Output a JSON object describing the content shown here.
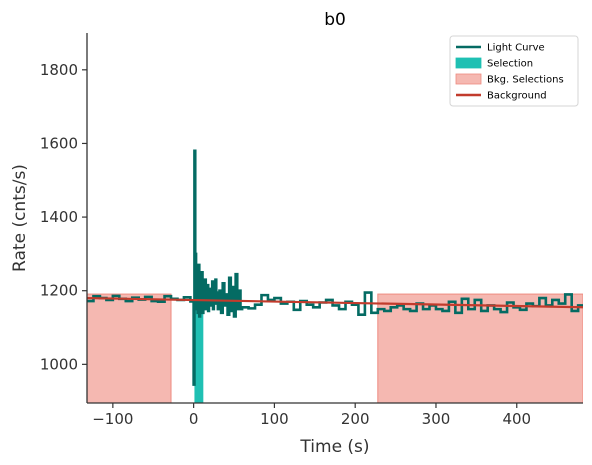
{
  "chart_data": {
    "type": "line",
    "title": "b0",
    "xlabel": "Time (s)",
    "ylabel": "Rate (cnts/s)",
    "xlim": [
      -132,
      482
    ],
    "ylim": [
      895,
      1900
    ],
    "xticks": [
      -100,
      0,
      100,
      200,
      300,
      400
    ],
    "yticks": [
      1000,
      1200,
      1400,
      1600,
      1800
    ],
    "xtick_labels": [
      "−100",
      "0",
      "100",
      "200",
      "300",
      "400"
    ],
    "ytick_labels": [
      "1000",
      "1200",
      "1400",
      "1600",
      "1800"
    ],
    "grid": false,
    "legend_position": "top-right",
    "legend": [
      {
        "label": "Light Curve",
        "kind": "line",
        "color": "#046b63"
      },
      {
        "label": "Selection",
        "kind": "patch",
        "color": "#1fc0b3"
      },
      {
        "label": "Bkg. Selections",
        "kind": "patch",
        "color": "#f5b8b1"
      },
      {
        "label": "Background",
        "kind": "line",
        "color": "#c23b2c"
      }
    ],
    "selection": {
      "x": [
        1,
        12
      ],
      "color": "#1fc0b3"
    },
    "bkg_selections": [
      {
        "x": [
          -132,
          -28
        ],
        "color": "#f5b8b1"
      },
      {
        "x": [
          228,
          482
        ],
        "color": "#f5b8b1"
      }
    ],
    "background": {
      "x": [
        -132,
        482
      ],
      "y": [
        1180,
        1155
      ],
      "color": "#c23b2c"
    },
    "light_curve": {
      "color": "#046b63",
      "step_edges": [
        -132,
        -124,
        -116,
        -108,
        -100,
        -92,
        -84,
        -76,
        -68,
        -60,
        -52,
        -44,
        -36,
        -28,
        -20,
        -12,
        -4,
        0,
        1,
        2,
        3,
        4,
        5,
        6,
        7,
        8,
        9,
        10,
        11,
        12,
        13,
        14,
        15,
        16,
        17,
        18,
        19,
        20,
        21,
        22,
        23,
        24,
        25,
        26,
        27,
        28,
        29,
        30,
        32,
        34,
        36,
        38,
        40,
        42,
        44,
        46,
        48,
        50,
        52,
        54,
        56,
        58,
        60,
        68,
        76,
        84,
        92,
        100,
        108,
        116,
        124,
        132,
        140,
        148,
        156,
        164,
        172,
        180,
        188,
        196,
        204,
        212,
        220,
        228,
        236,
        244,
        252,
        260,
        268,
        276,
        284,
        292,
        300,
        308,
        316,
        324,
        332,
        340,
        348,
        356,
        364,
        372,
        380,
        388,
        396,
        404,
        412,
        420,
        428,
        436,
        444,
        452,
        460,
        468,
        476,
        482
      ],
      "values": [
        1172,
        1185,
        1180,
        1175,
        1186,
        1178,
        1172,
        1181,
        1176,
        1183,
        1172,
        1170,
        1185,
        1178,
        1175,
        1182,
        1171,
        945,
        1580,
        1300,
        1150,
        1230,
        1140,
        1270,
        1130,
        1210,
        1160,
        1250,
        1140,
        1200,
        1155,
        1230,
        1150,
        1180,
        1215,
        1145,
        1205,
        1165,
        1185,
        1160,
        1225,
        1150,
        1190,
        1170,
        1230,
        1165,
        1195,
        1150,
        1200,
        1140,
        1220,
        1160,
        1190,
        1135,
        1235,
        1145,
        1210,
        1130,
        1245,
        1150,
        1200,
        1150,
        1155,
        1152,
        1162,
        1188,
        1175,
        1180,
        1165,
        1170,
        1148,
        1172,
        1162,
        1155,
        1168,
        1175,
        1160,
        1150,
        1170,
        1162,
        1135,
        1195,
        1140,
        1150,
        1145,
        1155,
        1160,
        1150,
        1145,
        1165,
        1150,
        1160,
        1150,
        1145,
        1170,
        1140,
        1178,
        1150,
        1175,
        1145,
        1160,
        1150,
        1142,
        1168,
        1155,
        1148,
        1165,
        1158,
        1180,
        1160,
        1175,
        1165,
        1190,
        1145,
        1160
      ]
    }
  }
}
